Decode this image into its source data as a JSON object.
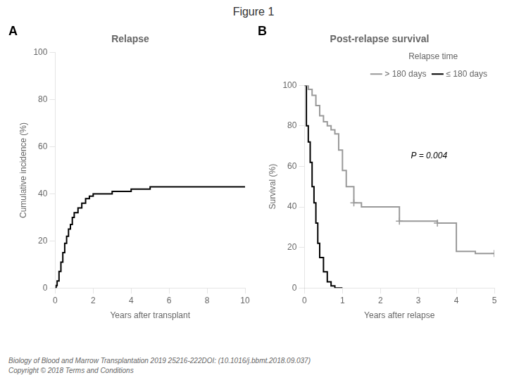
{
  "title": "Figure 1",
  "annotations": [
    "Biology of Blood and Marrow Transplantation 2019 25216-222DOI: (10.1016/j.bbmt.2018.09.037)",
    "Copyright © 2018   Terms and Conditions"
  ],
  "chart_data": [
    {
      "type": "line",
      "title": "Relapse",
      "xlabel": "Years after transplant",
      "ylabel": "Cumulative incidence (%)",
      "annotations": [
        "A"
      ],
      "x": [
        0,
        0.05,
        0.1,
        0.2,
        0.3,
        0.4,
        0.5,
        0.6,
        0.7,
        0.8,
        0.9,
        1.0,
        1.2,
        1.4,
        1.6,
        1.8,
        2.0,
        2.5,
        3.0,
        3.5,
        4.0,
        4.5,
        5.0,
        6.0,
        7.0,
        8.0,
        9.0,
        10.0
      ],
      "values": [
        0,
        1,
        3,
        7,
        11,
        15,
        19,
        22,
        25,
        27,
        30,
        32,
        34,
        36,
        38,
        39,
        40,
        40,
        41,
        41,
        42,
        42,
        43,
        43,
        43,
        43,
        43,
        43
      ],
      "color": "#000000",
      "line_style": "step",
      "xlim": [
        0,
        10
      ],
      "xticks": [
        0,
        2,
        4,
        6,
        8,
        10
      ],
      "ylim": [
        0,
        100
      ],
      "yticks": [
        0,
        20,
        40,
        60,
        80,
        100
      ],
      "grid": false
    },
    {
      "type": "line",
      "title": "Post-relapse survival",
      "xlabel": "Years after relapse",
      "ylabel": "Survival (%)",
      "annotations": [
        "B",
        "P = 0.004"
      ],
      "series": [
        {
          "name": "> 180 days",
          "color": "#999999",
          "line_style": "step",
          "x": [
            0,
            0.1,
            0.2,
            0.3,
            0.4,
            0.5,
            0.6,
            0.7,
            0.8,
            0.9,
            1.0,
            1.1,
            1.3,
            1.5,
            2.0,
            2.5,
            3.0,
            3.5,
            4.0,
            4.5,
            5.0
          ],
          "values": [
            100,
            98,
            95,
            90,
            85,
            82,
            80,
            78,
            76,
            68,
            58,
            50,
            42,
            40,
            40,
            33,
            33,
            32,
            18,
            17,
            17
          ]
        },
        {
          "type": "scatter",
          "marker": "plus",
          "color": "#999999",
          "x": [
            1.3,
            2.5,
            3.5,
            5.0
          ],
          "values": [
            42,
            33,
            32,
            17
          ]
        },
        {
          "name": "≤ 180 days",
          "color": "#000000",
          "line_style": "step",
          "x": [
            0,
            0.05,
            0.1,
            0.15,
            0.2,
            0.25,
            0.3,
            0.35,
            0.4,
            0.5,
            0.6,
            0.7,
            0.8,
            0.9,
            1.0
          ],
          "values": [
            100,
            80,
            72,
            62,
            50,
            42,
            32,
            22,
            15,
            8,
            3,
            1,
            0,
            0,
            0
          ]
        }
      ],
      "legend": "upper right",
      "legend_title": "Relapse time",
      "xlim": [
        0,
        5
      ],
      "xticks": [
        0,
        1,
        2,
        3,
        4,
        5
      ],
      "ylim": [
        0,
        100
      ],
      "yticks": [
        0,
        20,
        40,
        60,
        80,
        100
      ],
      "grid": false
    }
  ]
}
